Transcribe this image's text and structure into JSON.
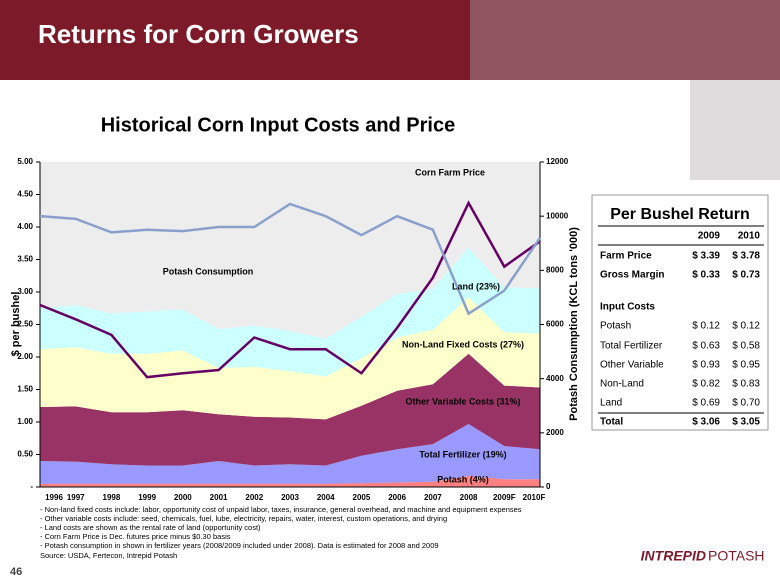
{
  "slide": {
    "title": "Returns for Corn Growers",
    "page_number": "46",
    "logo": [
      "INTREPID",
      "POTASH"
    ]
  },
  "chart_data": {
    "type": "stacked-area-line",
    "title": "Historical Corn Input Costs and Price",
    "y_label": "$ per bushel",
    "y2_label": "Potash Consumption (KCL tons '000)",
    "categories": [
      "1996",
      "1997",
      "1998",
      "1999",
      "2000",
      "2001",
      "2002",
      "2003",
      "2004",
      "2005",
      "2006",
      "2007",
      "2008",
      "2009F",
      "2010F"
    ],
    "ylim": [
      0,
      5
    ],
    "yticks": [
      {
        "value": 0,
        "label": "-"
      },
      {
        "value": 0.5,
        "label": "0.50"
      },
      {
        "value": 1,
        "label": "1.00"
      },
      {
        "value": 1.5,
        "label": "1.50"
      },
      {
        "value": 2,
        "label": "2.00"
      },
      {
        "value": 2.5,
        "label": "2.50"
      },
      {
        "value": 3,
        "label": "3.00"
      },
      {
        "value": 3.5,
        "label": "3.50"
      },
      {
        "value": 4,
        "label": "4.00"
      },
      {
        "value": 4.5,
        "label": "4.50"
      },
      {
        "value": 5,
        "label": "5.00"
      }
    ],
    "y2lim": [
      0,
      12000
    ],
    "y2ticks": [
      0,
      2000,
      4000,
      6000,
      8000,
      10000,
      12000
    ],
    "series": [
      {
        "name": "Potash (4%)",
        "color": "#ff8080",
        "stack": true,
        "values": [
          0.05,
          0.05,
          0.05,
          0.05,
          0.05,
          0.05,
          0.05,
          0.05,
          0.05,
          0.06,
          0.07,
          0.08,
          0.17,
          0.12,
          0.12
        ]
      },
      {
        "name": "Total Fertilizer (19%)",
        "color": "#9999ff",
        "stack": true,
        "values": [
          0.35,
          0.34,
          0.3,
          0.28,
          0.28,
          0.35,
          0.28,
          0.3,
          0.28,
          0.42,
          0.51,
          0.58,
          0.8,
          0.51,
          0.46
        ]
      },
      {
        "name": "Other Variable Costs (31%)",
        "color": "#993366",
        "stack": true,
        "values": [
          0.83,
          0.85,
          0.8,
          0.82,
          0.85,
          0.72,
          0.75,
          0.72,
          0.71,
          0.77,
          0.9,
          0.92,
          1.08,
          0.93,
          0.95
        ]
      },
      {
        "name": "Non-Land Fixed Costs (27%)",
        "color": "#ffffcc",
        "stack": true,
        "values": [
          0.89,
          0.91,
          0.9,
          0.9,
          0.92,
          0.71,
          0.77,
          0.71,
          0.66,
          0.73,
          0.82,
          0.84,
          0.87,
          0.82,
          0.83
        ]
      },
      {
        "name": "Land (23%)",
        "color": "#ccffff",
        "stack": true,
        "values": [
          0.63,
          0.65,
          0.62,
          0.65,
          0.63,
          0.6,
          0.63,
          0.62,
          0.58,
          0.64,
          0.67,
          0.63,
          0.76,
          0.69,
          0.7
        ]
      },
      {
        "name": "Corn Farm Price",
        "color": "#660066",
        "values": [
          2.8,
          2.58,
          2.34,
          1.69,
          1.75,
          1.8,
          2.3,
          2.12,
          2.12,
          1.75,
          2.45,
          3.22,
          4.37,
          3.39,
          3.78
        ]
      },
      {
        "name": "Potash Consumption",
        "color": "#8aa0cc",
        "axis": "y2",
        "values": [
          10000,
          9900,
          9400,
          9500,
          9450,
          9600,
          9600,
          10450,
          10000,
          9300,
          10000,
          9500,
          6400,
          7250,
          9200
        ]
      }
    ]
  },
  "table": {
    "title": "Per Bushel Return",
    "columns": [
      "2009",
      "2010"
    ],
    "rows": [
      [
        "Farm Price",
        "$ 3.39",
        "$ 3.78"
      ],
      [
        "Gross Margin",
        "$ 0.33",
        "$ 0.73"
      ],
      [
        "Input Costs"
      ],
      [
        "Potash",
        "$ 0.12",
        "$ 0.12"
      ],
      [
        "Total Fertilizer",
        "$ 0.63",
        "$ 0.58"
      ],
      [
        "Other Variable",
        "$ 0.93",
        "$ 0.95"
      ],
      [
        "Non-Land",
        "$ 0.82",
        "$ 0.83"
      ],
      [
        "Land",
        "$ 0.69",
        "$ 0.70"
      ],
      [
        "Total",
        "$ 3.06",
        "$ 3.05"
      ]
    ]
  },
  "notes": [
    "- Non-land fixed costs include: labor, opportunity cost of unpaid labor, taxes, insurance, general overhead, and machine and equipment expenses",
    "- Other variable costs include: seed, chemicals, fuel, lube, electricity, repairs, water, interest, custom operations, and drying",
    "- Land costs are shown as the rental rate of land (opportunity cost)",
    "- Corn Farm Price is Dec. futures price minus $0.30 basis",
    "- Potash consumption in shown in fertilizer years (2008/2009 included under 2008). Data is estimated for 2008 and 2009"
  ],
  "source": "Source: USDA, Fertecon, Intrepid Potash"
}
